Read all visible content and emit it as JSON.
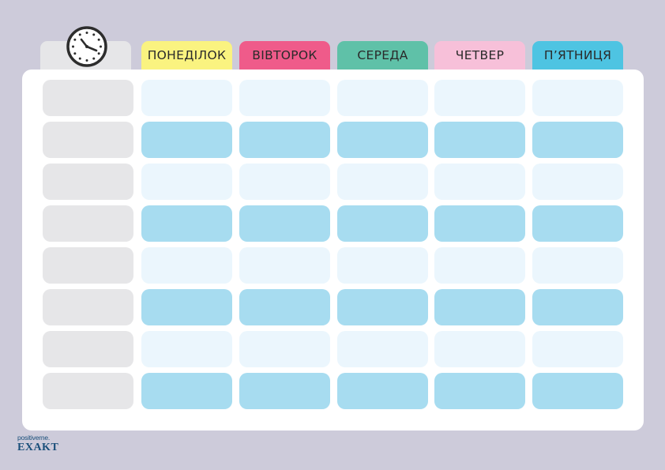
{
  "colors": {
    "background": "#cdcbda",
    "panel": "#ffffff",
    "time_cell": "#e6e6e8",
    "light_cell": "#ebf6fd",
    "dark_cell": "#a7dcf0"
  },
  "header": {
    "clock_icon": "clock-icon",
    "days": [
      {
        "label": "ПОНЕДІЛОК",
        "color": "#faf380"
      },
      {
        "label": "ВІВТОРОК",
        "color": "#ef5b8a"
      },
      {
        "label": "СЕРЕДА",
        "color": "#5fc1a8"
      },
      {
        "label": "ЧЕТВЕР",
        "color": "#f7c0d9"
      },
      {
        "label": "П’ЯТНИЦЯ",
        "color": "#4ec4e2"
      }
    ]
  },
  "grid": {
    "row_shading": [
      "light",
      "dark",
      "light",
      "dark",
      "light",
      "dark",
      "light",
      "dark"
    ]
  },
  "branding": {
    "small": "positiverne.",
    "big": "EXAKT"
  }
}
